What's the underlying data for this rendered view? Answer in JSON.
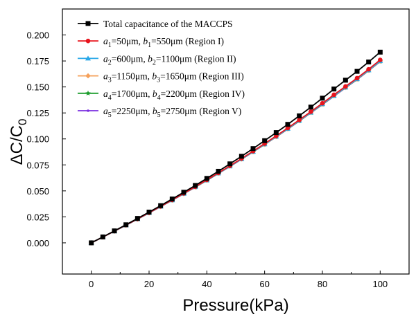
{
  "chart_data": {
    "type": "line",
    "xlabel": "Pressure(kPa)",
    "ylabel": "ΔC/C0",
    "xlim": [
      -10,
      110
    ],
    "ylim": [
      -0.03,
      0.225
    ],
    "xticks": [
      0,
      20,
      40,
      60,
      80,
      100
    ],
    "yticks": [
      0.0,
      0.025,
      0.05,
      0.075,
      0.1,
      0.125,
      0.15,
      0.175,
      0.2
    ],
    "ytick_labels": [
      "0.000",
      "0.025",
      "0.050",
      "0.075",
      "0.100",
      "0.125",
      "0.150",
      "0.175",
      "0.200"
    ],
    "grid": false,
    "legend_position": "top-left",
    "x": [
      0,
      4,
      8,
      12,
      16,
      20,
      24,
      28,
      32,
      36,
      40,
      44,
      48,
      52,
      56,
      60,
      64,
      68,
      72,
      76,
      80,
      84,
      88,
      92,
      96,
      100
    ],
    "series": [
      {
        "label_parts": [
          "Total capacitance of the MACCPS"
        ],
        "color": "#000000",
        "marker": "square",
        "values": [
          0,
          0.0057,
          0.0115,
          0.0174,
          0.0235,
          0.0296,
          0.0358,
          0.0422,
          0.0487,
          0.0552,
          0.062,
          0.0689,
          0.076,
          0.0833,
          0.0907,
          0.0983,
          0.1061,
          0.114,
          0.1222,
          0.1306,
          0.1392,
          0.148,
          0.1565,
          0.165,
          0.174,
          0.1835
        ]
      },
      {
        "label_parts": [
          "a",
          "1",
          "=50μm, ",
          "b",
          "1",
          "=550μm        (Region I)"
        ],
        "color": "#e8141d",
        "marker": "circle",
        "values": [
          0,
          0.0056,
          0.0113,
          0.0171,
          0.023,
          0.029,
          0.0351,
          0.0413,
          0.0476,
          0.054,
          0.0606,
          0.0673,
          0.0741,
          0.0811,
          0.0882,
          0.0955,
          0.1029,
          0.1105,
          0.1183,
          0.1262,
          0.1343,
          0.1425,
          0.1505,
          0.1585,
          0.167,
          0.176
        ]
      },
      {
        "label_parts": [
          "a",
          "2",
          "=600μm, ",
          "b",
          "2",
          "=1100μm   (Region II)"
        ],
        "color": "#2aa8e8",
        "marker": "triangle",
        "values": [
          0,
          0.0056,
          0.0112,
          0.017,
          0.0229,
          0.0289,
          0.035,
          0.0411,
          0.0474,
          0.0538,
          0.0603,
          0.067,
          0.0738,
          0.0807,
          0.0878,
          0.095,
          0.1024,
          0.1099,
          0.1177,
          0.1255,
          0.1336,
          0.1417,
          0.1497,
          0.1577,
          0.1662,
          0.175
        ]
      },
      {
        "label_parts": [
          "a",
          "3",
          "=1150μm, ",
          "b",
          "3",
          "=1650μm (Region III)"
        ],
        "color": "#f5a05a",
        "marker": "diamond",
        "values": [
          0,
          0.0056,
          0.0112,
          0.017,
          0.0229,
          0.0288,
          0.0349,
          0.041,
          0.0473,
          0.0537,
          0.0602,
          0.0669,
          0.0737,
          0.0806,
          0.0876,
          0.0948,
          0.1022,
          0.1097,
          0.1175,
          0.1253,
          0.1334,
          0.1415,
          0.1495,
          0.1575,
          0.166,
          0.1748
        ]
      },
      {
        "label_parts": [
          "a",
          "4",
          "=1700μm, ",
          "b",
          "4",
          "=2200μm (Region IV)"
        ],
        "color": "#1a9c2a",
        "marker": "star",
        "values": [
          0,
          0.0056,
          0.0112,
          0.017,
          0.0228,
          0.0288,
          0.0349,
          0.041,
          0.0473,
          0.0536,
          0.0601,
          0.0668,
          0.0736,
          0.0805,
          0.0875,
          0.0947,
          0.1021,
          0.1096,
          0.1173,
          0.1252,
          0.1332,
          0.1413,
          0.1493,
          0.1573,
          0.1658,
          0.1746
        ]
      },
      {
        "label_parts": [
          "a",
          "5",
          "=2250μm, ",
          "b",
          "5",
          "=2750μm (Region V)"
        ],
        "color": "#7a2ee0",
        "marker": "small-dot",
        "values": [
          0,
          0.0056,
          0.0112,
          0.0169,
          0.0228,
          0.0287,
          0.0348,
          0.0409,
          0.0472,
          0.0535,
          0.06,
          0.0667,
          0.0735,
          0.0804,
          0.0874,
          0.0946,
          0.1019,
          0.1094,
          0.1171,
          0.125,
          0.133,
          0.1411,
          0.1491,
          0.1571,
          0.1656,
          0.1744
        ]
      }
    ]
  }
}
